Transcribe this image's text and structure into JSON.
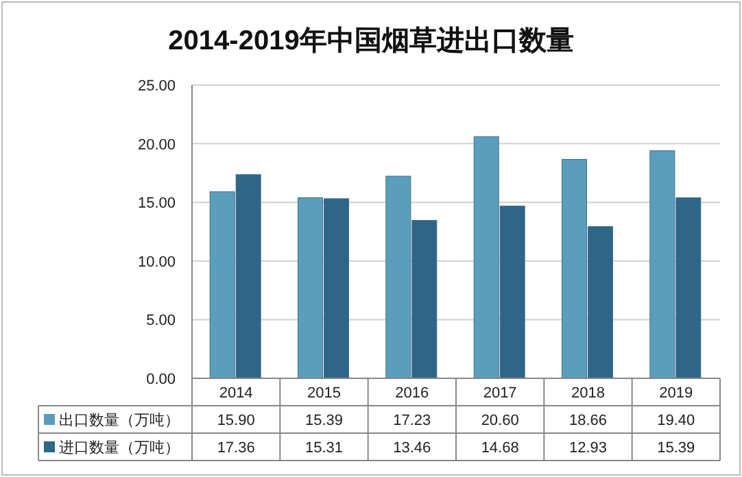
{
  "chart_data": {
    "type": "bar",
    "title": "2014-2019年中国烟草进出口数量",
    "categories": [
      "2014",
      "2015",
      "2016",
      "2017",
      "2018",
      "2019"
    ],
    "series": [
      {
        "name": "出口数量（万吨）",
        "color": "#5b9dbd",
        "values": [
          15.9,
          15.39,
          17.23,
          20.6,
          18.66,
          19.4
        ],
        "value_labels": [
          "15.90",
          "15.39",
          "17.23",
          "20.60",
          "18.66",
          "19.40"
        ]
      },
      {
        "name": "进口数量（万吨）",
        "color": "#2f6688",
        "values": [
          17.36,
          15.31,
          13.46,
          14.68,
          12.93,
          15.39
        ],
        "value_labels": [
          "17.36",
          "15.31",
          "13.46",
          "14.68",
          "12.93",
          "15.39"
        ]
      }
    ],
    "ylim": [
      0,
      25
    ],
    "yticks": [
      {
        "value": 0,
        "label": "0.00"
      },
      {
        "value": 5,
        "label": "5.00"
      },
      {
        "value": 10,
        "label": "10.00"
      },
      {
        "value": 15,
        "label": "15.00"
      },
      {
        "value": 20,
        "label": "20.00"
      },
      {
        "value": 25,
        "label": "25.00"
      }
    ],
    "grid": "y",
    "legend": "bottom"
  }
}
